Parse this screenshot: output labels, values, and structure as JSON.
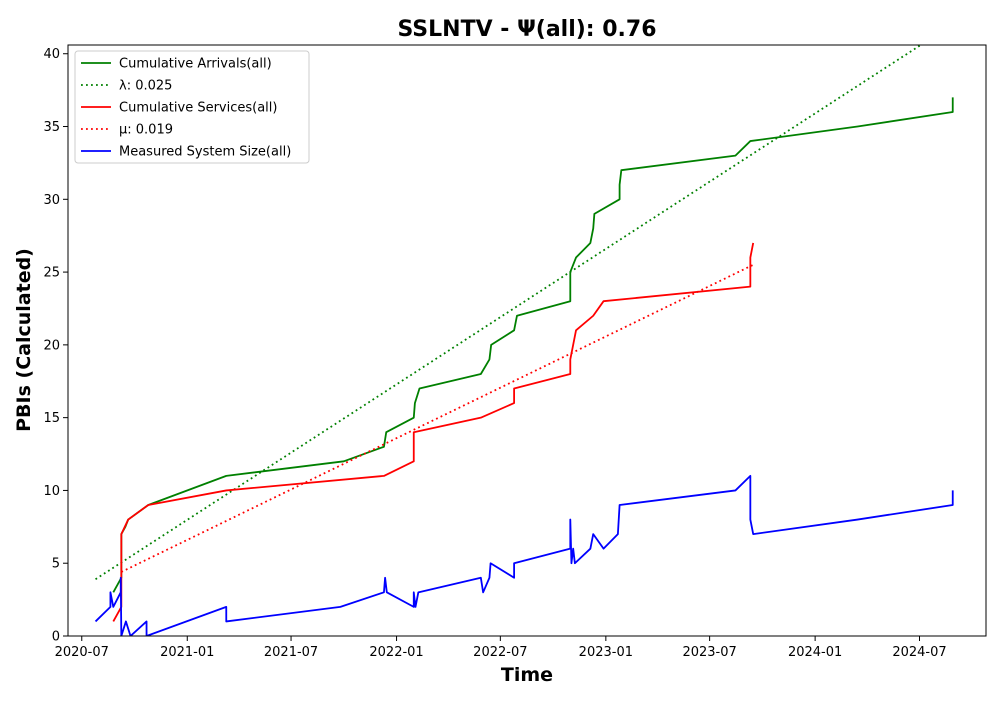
{
  "chart_data": {
    "type": "line",
    "title": "SSLNTV -  Ψ(all): 0.76",
    "xlabel": "Time",
    "ylabel": "PBIs (Calculated)",
    "x_type": "date",
    "xlim": [
      "2020-06-07",
      "2024-10-25"
    ],
    "ylim": [
      0,
      40.6
    ],
    "x_ticks": [
      {
        "date": "2020-07-01",
        "label": "2020-07"
      },
      {
        "date": "2021-01-01",
        "label": "2021-01"
      },
      {
        "date": "2021-07-01",
        "label": "2021-07"
      },
      {
        "date": "2022-01-01",
        "label": "2022-01"
      },
      {
        "date": "2022-07-01",
        "label": "2022-07"
      },
      {
        "date": "2023-01-01",
        "label": "2023-01"
      },
      {
        "date": "2023-07-01",
        "label": "2023-07"
      },
      {
        "date": "2024-01-01",
        "label": "2024-01"
      },
      {
        "date": "2024-07-01",
        "label": "2024-07"
      }
    ],
    "y_ticks": [
      0,
      5,
      10,
      15,
      20,
      25,
      30,
      35,
      40
    ],
    "grid": false,
    "legend_position": "top-left",
    "series": [
      {
        "name": "Cumulative Arrivals(all)",
        "color": "#008000",
        "style": "solid",
        "points": [
          [
            "2020-08-25",
            3
          ],
          [
            "2020-09-08",
            4
          ],
          [
            "2020-09-08",
            7
          ],
          [
            "2020-09-15",
            7.5
          ],
          [
            "2020-09-20",
            8
          ],
          [
            "2020-10-25",
            9
          ],
          [
            "2021-03-10",
            11
          ],
          [
            "2021-10-01",
            12
          ],
          [
            "2021-12-10",
            13
          ],
          [
            "2021-12-14",
            14
          ],
          [
            "2022-01-31",
            15
          ],
          [
            "2022-02-02",
            16
          ],
          [
            "2022-02-10",
            17
          ],
          [
            "2022-05-28",
            18
          ],
          [
            "2022-06-12",
            19
          ],
          [
            "2022-06-15",
            20
          ],
          [
            "2022-07-25",
            21
          ],
          [
            "2022-07-30",
            22
          ],
          [
            "2022-10-31",
            23
          ],
          [
            "2022-10-31",
            25
          ],
          [
            "2022-11-10",
            26
          ],
          [
            "2022-12-05",
            27
          ],
          [
            "2022-12-10",
            28
          ],
          [
            "2022-12-12",
            29
          ],
          [
            "2023-01-25",
            30
          ],
          [
            "2023-01-25",
            31
          ],
          [
            "2023-01-28",
            32
          ],
          [
            "2023-08-15",
            33
          ],
          [
            "2023-09-10",
            34
          ],
          [
            "2024-03-15",
            35
          ],
          [
            "2024-08-28",
            36
          ],
          [
            "2024-08-28",
            37
          ]
        ]
      },
      {
        "name": "λ: 0.025",
        "color": "#008000",
        "style": "dotted",
        "points": [
          [
            "2020-07-25",
            3.9
          ],
          [
            "2024-07-15",
            40.9
          ]
        ]
      },
      {
        "name": "Cumulative Services(all)",
        "color": "#ff0000",
        "style": "solid",
        "points": [
          [
            "2020-08-25",
            1
          ],
          [
            "2020-09-08",
            2
          ],
          [
            "2020-09-08",
            7
          ],
          [
            "2020-09-20",
            8
          ],
          [
            "2020-10-25",
            9
          ],
          [
            "2021-03-10",
            10
          ],
          [
            "2021-12-10",
            11
          ],
          [
            "2022-01-31",
            12
          ],
          [
            "2022-01-31",
            14
          ],
          [
            "2022-05-28",
            15
          ],
          [
            "2022-07-25",
            16
          ],
          [
            "2022-07-25",
            17
          ],
          [
            "2022-10-31",
            18
          ],
          [
            "2022-10-31",
            19
          ],
          [
            "2022-11-05",
            20
          ],
          [
            "2022-11-10",
            21
          ],
          [
            "2022-12-10",
            22
          ],
          [
            "2022-12-28",
            23
          ],
          [
            "2023-09-10",
            24
          ],
          [
            "2023-09-10",
            26
          ],
          [
            "2023-09-15",
            27
          ]
        ]
      },
      {
        "name": "μ: 0.019",
        "color": "#ff0000",
        "style": "dotted",
        "points": [
          [
            "2020-09-08",
            4.4
          ],
          [
            "2023-09-15",
            25.5
          ]
        ]
      },
      {
        "name": "Measured System Size(all)",
        "color": "#0000ff",
        "style": "solid",
        "points": [
          [
            "2020-07-25",
            1
          ],
          [
            "2020-08-20",
            2
          ],
          [
            "2020-08-20",
            3
          ],
          [
            "2020-08-25",
            2
          ],
          [
            "2020-09-07",
            3
          ],
          [
            "2020-09-07",
            4
          ],
          [
            "2020-09-08",
            0
          ],
          [
            "2020-09-16",
            1
          ],
          [
            "2020-09-24",
            0
          ],
          [
            "2020-10-22",
            1
          ],
          [
            "2020-10-22",
            0
          ],
          [
            "2021-03-10",
            2
          ],
          [
            "2021-03-10",
            1
          ],
          [
            "2021-09-25",
            2
          ],
          [
            "2021-12-10",
            3
          ],
          [
            "2021-12-12",
            4
          ],
          [
            "2021-12-15",
            3
          ],
          [
            "2022-01-31",
            2
          ],
          [
            "2022-01-31",
            3
          ],
          [
            "2022-02-03",
            2
          ],
          [
            "2022-02-08",
            3
          ],
          [
            "2022-05-28",
            4
          ],
          [
            "2022-06-01",
            3
          ],
          [
            "2022-06-12",
            4
          ],
          [
            "2022-06-14",
            5
          ],
          [
            "2022-07-25",
            4
          ],
          [
            "2022-07-25",
            5
          ],
          [
            "2022-10-31",
            6
          ],
          [
            "2022-10-31",
            8
          ],
          [
            "2022-11-02",
            5
          ],
          [
            "2022-11-05",
            6
          ],
          [
            "2022-11-08",
            5
          ],
          [
            "2022-12-05",
            6
          ],
          [
            "2022-12-10",
            7
          ],
          [
            "2022-12-28",
            6
          ],
          [
            "2023-01-22",
            7
          ],
          [
            "2023-01-25",
            9
          ],
          [
            "2023-08-15",
            10
          ],
          [
            "2023-09-10",
            11
          ],
          [
            "2023-09-10",
            8
          ],
          [
            "2023-09-15",
            7
          ],
          [
            "2024-03-15",
            8
          ],
          [
            "2024-08-28",
            9
          ],
          [
            "2024-08-28",
            10
          ]
        ]
      }
    ]
  }
}
